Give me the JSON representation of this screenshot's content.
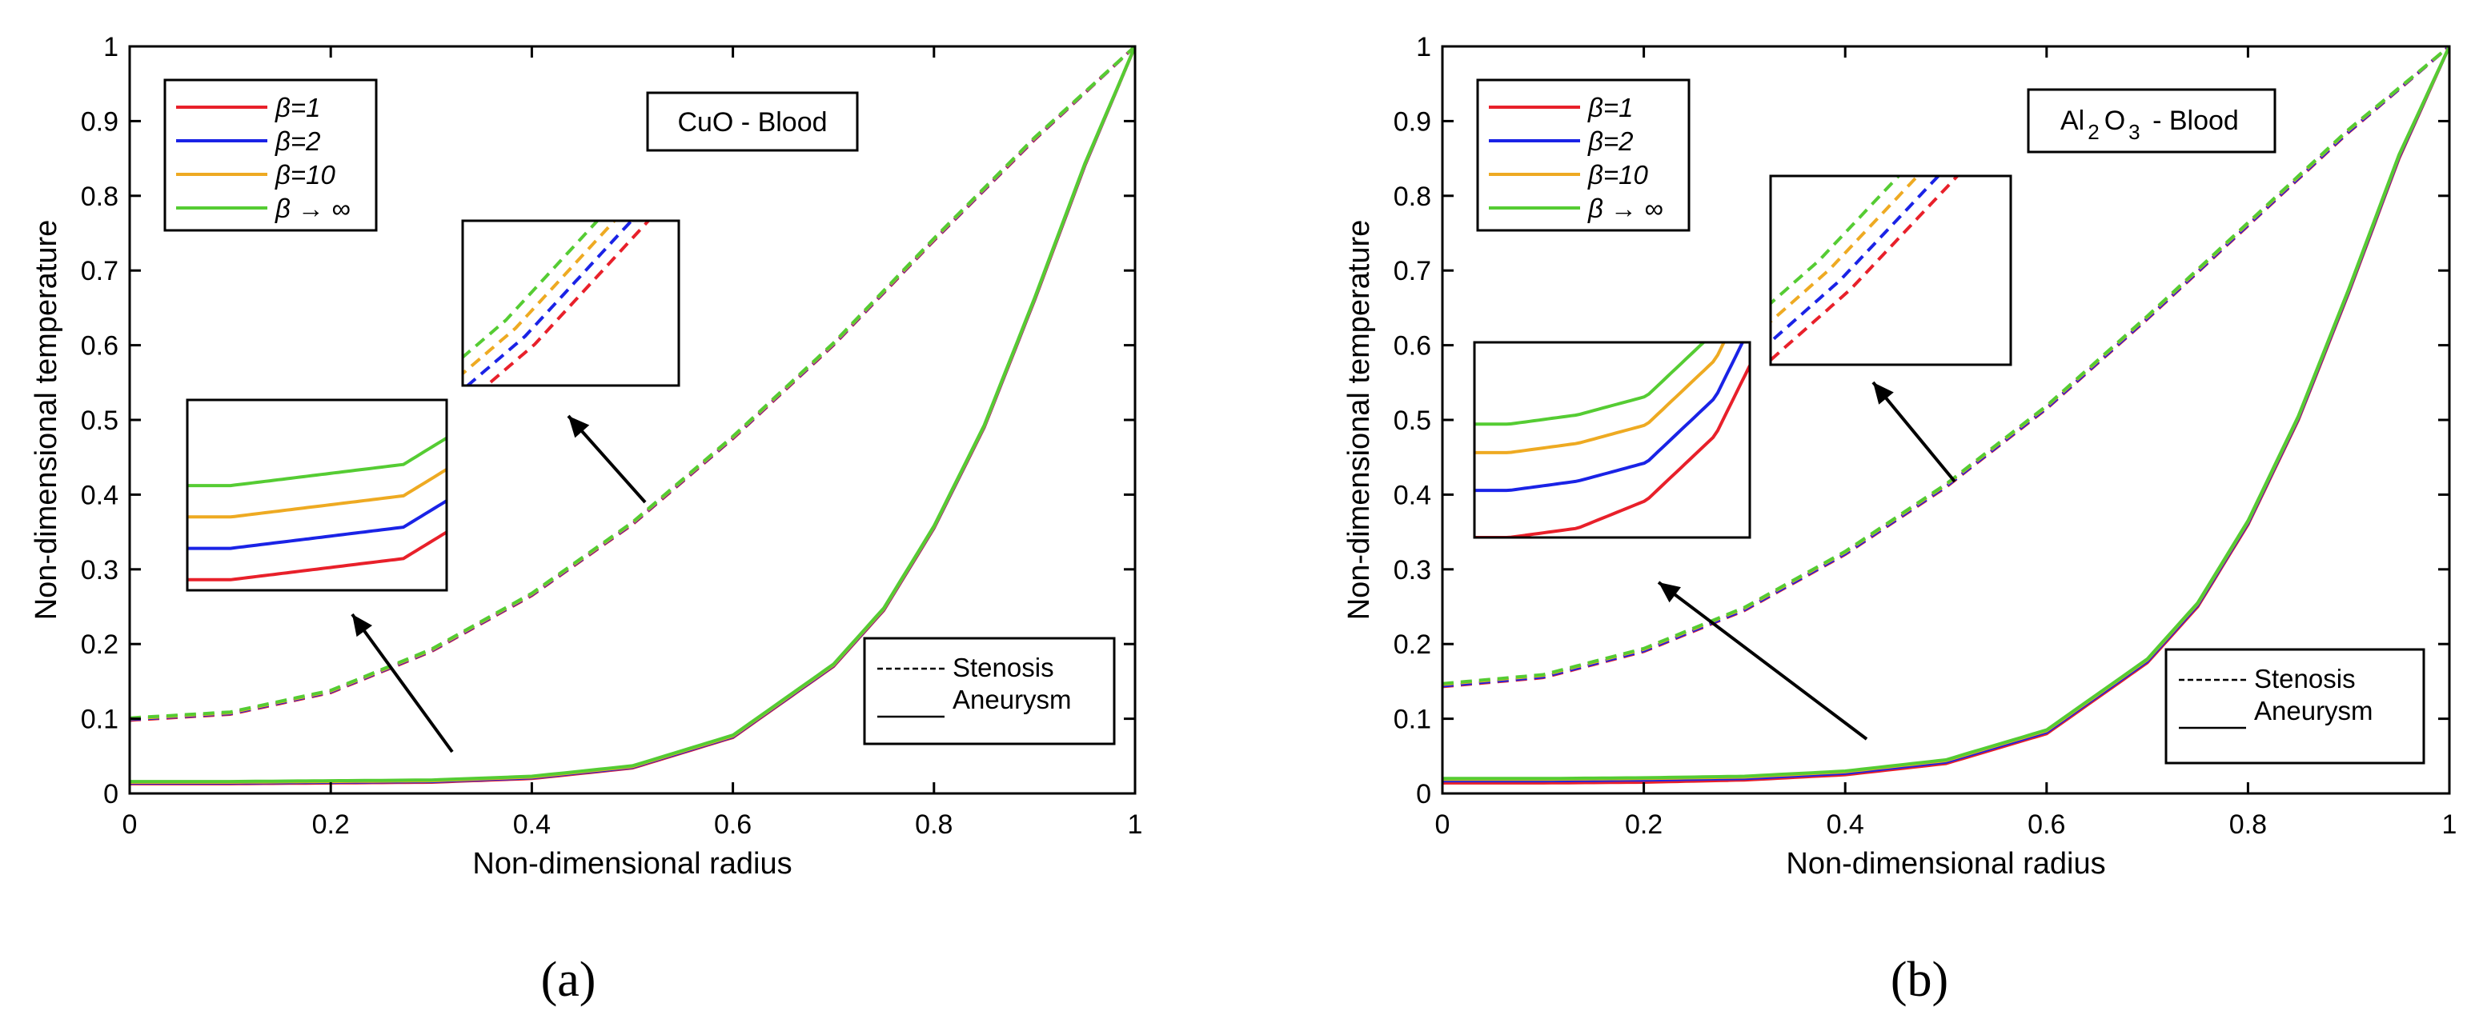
{
  "figure": {
    "panels": [
      "(a)",
      "(b)"
    ]
  },
  "colors": {
    "beta1": "#e8202a",
    "beta2": "#1a23e6",
    "beta10": "#eeaa22",
    "betaInf": "#55cc33",
    "axis": "#000000"
  },
  "chart_data": [
    {
      "type": "line",
      "panel": "(a)",
      "annotation": "CuO - Blood",
      "xlabel": "Non-dimensional radius",
      "ylabel": "Non-dimensional temperature",
      "xlim": [
        0,
        1
      ],
      "ylim": [
        0,
        1
      ],
      "xticks": [
        "0",
        "0.2",
        "0.4",
        "0.6",
        "0.8",
        "1"
      ],
      "yticks": [
        "0",
        "0.1",
        "0.2",
        "0.3",
        "0.4",
        "0.5",
        "0.6",
        "0.7",
        "0.8",
        "0.9",
        "1"
      ],
      "legend_beta": [
        "β=1",
        "β=2",
        "β=10",
        "β → ∞"
      ],
      "legend_style": [
        "Stenosis",
        "Aneurysm"
      ],
      "legend_beta_position": "top-left",
      "legend_style_position": "bottom-right",
      "series": [
        {
          "name": "Stenosis β=1",
          "style": "dashed",
          "x": [
            0,
            0.1,
            0.2,
            0.3,
            0.4,
            0.5,
            0.6,
            0.7,
            0.8,
            0.9,
            1.0
          ],
          "y": [
            0.098,
            0.106,
            0.135,
            0.19,
            0.265,
            0.36,
            0.475,
            0.6,
            0.74,
            0.875,
            1.0
          ]
        },
        {
          "name": "Stenosis β=2",
          "style": "dashed",
          "x": [
            0,
            0.1,
            0.2,
            0.3,
            0.4,
            0.5,
            0.6,
            0.7,
            0.8,
            0.9,
            1.0
          ],
          "y": [
            0.099,
            0.107,
            0.136,
            0.191,
            0.266,
            0.361,
            0.476,
            0.601,
            0.741,
            0.876,
            1.0
          ]
        },
        {
          "name": "Stenosis β=10",
          "style": "dashed",
          "x": [
            0,
            0.1,
            0.2,
            0.3,
            0.4,
            0.5,
            0.6,
            0.7,
            0.8,
            0.9,
            1.0
          ],
          "y": [
            0.1,
            0.108,
            0.137,
            0.192,
            0.267,
            0.362,
            0.477,
            0.602,
            0.742,
            0.877,
            1.0
          ]
        },
        {
          "name": "Stenosis β → ∞",
          "style": "dashed",
          "x": [
            0,
            0.1,
            0.2,
            0.3,
            0.4,
            0.5,
            0.6,
            0.7,
            0.8,
            0.9,
            1.0
          ],
          "y": [
            0.101,
            0.109,
            0.138,
            0.193,
            0.268,
            0.363,
            0.478,
            0.603,
            0.743,
            0.878,
            1.0
          ]
        },
        {
          "name": "Aneurysm β=1",
          "style": "solid",
          "x": [
            0,
            0.1,
            0.2,
            0.3,
            0.4,
            0.5,
            0.6,
            0.7,
            0.75,
            0.8,
            0.85,
            0.9,
            0.95,
            1.0
          ],
          "y": [
            0.013,
            0.013,
            0.014,
            0.015,
            0.02,
            0.034,
            0.075,
            0.17,
            0.245,
            0.355,
            0.49,
            0.66,
            0.84,
            1.0
          ]
        },
        {
          "name": "Aneurysm β=2",
          "style": "solid",
          "x": [
            0,
            0.1,
            0.2,
            0.3,
            0.4,
            0.5,
            0.6,
            0.7,
            0.75,
            0.8,
            0.85,
            0.9,
            0.95,
            1.0
          ],
          "y": [
            0.014,
            0.014,
            0.015,
            0.016,
            0.021,
            0.035,
            0.076,
            0.171,
            0.246,
            0.356,
            0.491,
            0.661,
            0.841,
            1.0
          ]
        },
        {
          "name": "Aneurysm β=10",
          "style": "solid",
          "x": [
            0,
            0.1,
            0.2,
            0.3,
            0.4,
            0.5,
            0.6,
            0.7,
            0.75,
            0.8,
            0.85,
            0.9,
            0.95,
            1.0
          ],
          "y": [
            0.015,
            0.015,
            0.016,
            0.017,
            0.022,
            0.036,
            0.077,
            0.172,
            0.247,
            0.357,
            0.492,
            0.662,
            0.842,
            1.0
          ]
        },
        {
          "name": "Aneurysm β → ∞",
          "style": "solid",
          "x": [
            0,
            0.1,
            0.2,
            0.3,
            0.4,
            0.5,
            0.6,
            0.7,
            0.75,
            0.8,
            0.85,
            0.9,
            0.95,
            1.0
          ],
          "y": [
            0.016,
            0.016,
            0.017,
            0.018,
            0.023,
            0.037,
            0.078,
            0.173,
            0.248,
            0.358,
            0.493,
            0.663,
            0.843,
            1.0
          ]
        }
      ]
    },
    {
      "type": "line",
      "panel": "(b)",
      "annotation_parts": [
        "Al",
        "2",
        "O",
        "3",
        " - Blood"
      ],
      "xlabel": "Non-dimensional radius",
      "ylabel": "Non-dimensional temperature",
      "xlim": [
        0,
        1
      ],
      "ylim": [
        0,
        1
      ],
      "xticks": [
        "0",
        "0.2",
        "0.4",
        "0.6",
        "0.8",
        "1"
      ],
      "yticks": [
        "0",
        "0.1",
        "0.2",
        "0.3",
        "0.4",
        "0.5",
        "0.6",
        "0.7",
        "0.8",
        "0.9",
        "1"
      ],
      "legend_beta": [
        "β=1",
        "β=2",
        "β=10",
        "β → ∞"
      ],
      "legend_style": [
        "Stenosis",
        "Aneurysm"
      ],
      "legend_beta_position": "top-left",
      "legend_style_position": "bottom-right",
      "series": [
        {
          "name": "Stenosis β=1",
          "style": "dashed",
          "x": [
            0,
            0.1,
            0.2,
            0.3,
            0.4,
            0.5,
            0.6,
            0.7,
            0.8,
            0.9,
            1.0
          ],
          "y": [
            0.143,
            0.155,
            0.19,
            0.245,
            0.32,
            0.41,
            0.515,
            0.635,
            0.76,
            0.885,
            1.0
          ]
        },
        {
          "name": "Stenosis β=2",
          "style": "dashed",
          "x": [
            0,
            0.1,
            0.2,
            0.3,
            0.4,
            0.5,
            0.6,
            0.7,
            0.8,
            0.9,
            1.0
          ],
          "y": [
            0.144,
            0.156,
            0.191,
            0.246,
            0.321,
            0.411,
            0.516,
            0.636,
            0.761,
            0.886,
            1.0
          ]
        },
        {
          "name": "Stenosis β=10",
          "style": "dashed",
          "x": [
            0,
            0.1,
            0.2,
            0.3,
            0.4,
            0.5,
            0.6,
            0.7,
            0.8,
            0.9,
            1.0
          ],
          "y": [
            0.146,
            0.158,
            0.193,
            0.248,
            0.323,
            0.413,
            0.518,
            0.638,
            0.763,
            0.888,
            1.0
          ]
        },
        {
          "name": "Stenosis β → ∞",
          "style": "dashed",
          "x": [
            0,
            0.1,
            0.2,
            0.3,
            0.4,
            0.5,
            0.6,
            0.7,
            0.8,
            0.9,
            1.0
          ],
          "y": [
            0.147,
            0.159,
            0.194,
            0.249,
            0.324,
            0.414,
            0.519,
            0.639,
            0.764,
            0.889,
            1.0
          ]
        },
        {
          "name": "Aneurysm β=1",
          "style": "solid",
          "x": [
            0,
            0.1,
            0.2,
            0.3,
            0.4,
            0.5,
            0.6,
            0.7,
            0.75,
            0.8,
            0.85,
            0.9,
            0.95,
            1.0
          ],
          "y": [
            0.014,
            0.014,
            0.015,
            0.018,
            0.025,
            0.04,
            0.08,
            0.175,
            0.25,
            0.36,
            0.5,
            0.67,
            0.85,
            1.0
          ]
        },
        {
          "name": "Aneurysm β=2",
          "style": "solid",
          "x": [
            0,
            0.1,
            0.2,
            0.3,
            0.4,
            0.5,
            0.6,
            0.7,
            0.75,
            0.8,
            0.85,
            0.9,
            0.95,
            1.0
          ],
          "y": [
            0.017,
            0.017,
            0.018,
            0.02,
            0.027,
            0.042,
            0.082,
            0.177,
            0.252,
            0.362,
            0.502,
            0.672,
            0.852,
            1.0
          ]
        },
        {
          "name": "Aneurysm β=10",
          "style": "solid",
          "x": [
            0,
            0.1,
            0.2,
            0.3,
            0.4,
            0.5,
            0.6,
            0.7,
            0.75,
            0.8,
            0.85,
            0.9,
            0.95,
            1.0
          ],
          "y": [
            0.019,
            0.019,
            0.02,
            0.022,
            0.029,
            0.044,
            0.084,
            0.179,
            0.254,
            0.364,
            0.504,
            0.674,
            0.854,
            1.0
          ]
        },
        {
          "name": "Aneurysm β → ∞",
          "style": "solid",
          "x": [
            0,
            0.1,
            0.2,
            0.3,
            0.4,
            0.5,
            0.6,
            0.7,
            0.75,
            0.8,
            0.85,
            0.9,
            0.95,
            1.0
          ],
          "y": [
            0.02,
            0.02,
            0.021,
            0.023,
            0.03,
            0.045,
            0.085,
            0.18,
            0.255,
            0.365,
            0.505,
            0.675,
            0.855,
            1.0
          ]
        }
      ]
    }
  ]
}
